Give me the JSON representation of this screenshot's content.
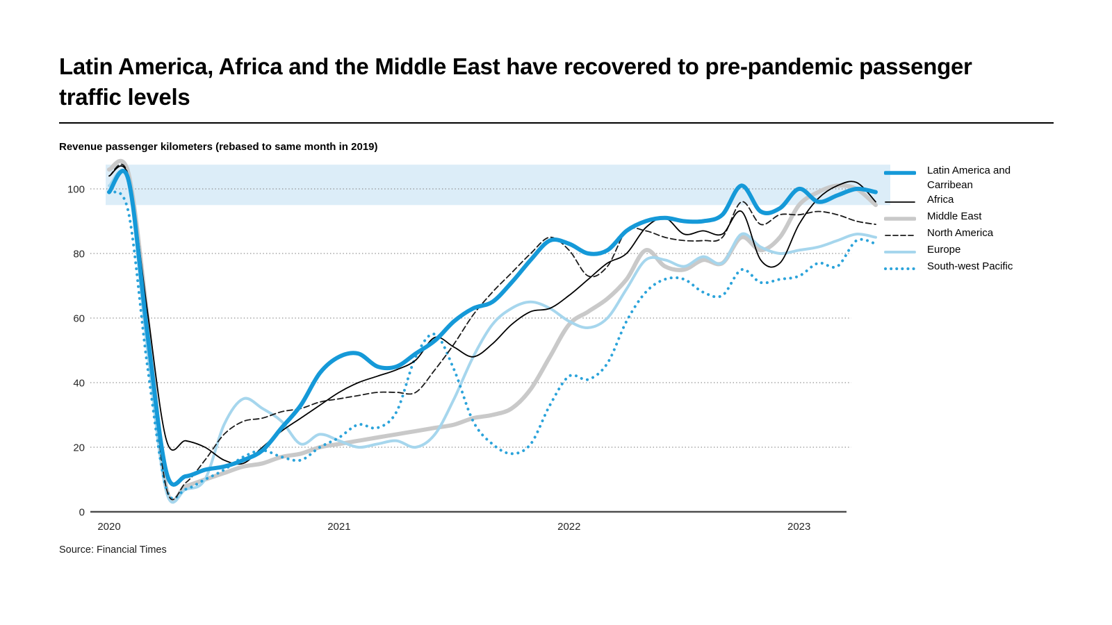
{
  "header": {
    "title": "Latin America, Africa and the Middle East have recovered to pre-pandemic passenger traffic levels"
  },
  "chart_data": {
    "type": "line",
    "title": "Latin America, Africa and the Middle East have recovered to pre-pandemic passenger traffic levels",
    "subtitle": "Revenue passenger kilometers (rebased to same month in 2019)",
    "source": "Source: Financial Times",
    "x_unit": "month",
    "x_range": [
      "2020-01",
      "2023-05"
    ],
    "x_ticks": [
      {
        "label": "2020",
        "month_index": 0
      },
      {
        "label": "2021",
        "month_index": 12
      },
      {
        "label": "2022",
        "month_index": 24
      },
      {
        "label": "2023",
        "month_index": 36
      }
    ],
    "y_ticks": [
      0,
      20,
      40,
      60,
      80,
      100
    ],
    "ylim": [
      0,
      107.5
    ],
    "grid": "horizontal dotted",
    "legend_position": "right",
    "highlight_band": {
      "from": 95,
      "to": 107.5,
      "color": "#dcedf8"
    },
    "series": [
      {
        "name": "Latin America and Carribean",
        "color": "#1599d8",
        "line": "solid",
        "width": 6,
        "values": [
          99,
          103,
          55,
          12,
          11,
          13,
          14,
          16,
          19,
          26,
          33,
          43,
          48,
          49,
          45,
          45,
          49,
          53,
          59,
          63,
          65,
          71,
          78,
          84,
          83,
          80,
          81,
          87,
          90,
          91,
          90,
          90,
          92,
          101,
          93,
          94,
          100,
          96,
          98,
          100,
          99
        ]
      },
      {
        "name": "Africa",
        "color": "#000000",
        "line": "solid",
        "width": 1.8,
        "values": [
          104,
          104,
          62,
          22,
          22,
          20,
          16,
          15,
          20,
          25,
          29,
          33,
          37,
          40,
          42,
          44,
          47,
          54,
          51,
          48,
          52,
          58,
          62,
          63,
          67,
          72,
          77,
          80,
          88,
          91,
          86,
          87,
          86,
          93,
          78,
          77,
          89,
          97,
          101,
          102,
          96
        ]
      },
      {
        "name": "Middle East",
        "color": "#c9c9c9",
        "line": "solid",
        "width": 6,
        "values": [
          106,
          105,
          60,
          7,
          8,
          10,
          12,
          14,
          15,
          17,
          18,
          20,
          21,
          22,
          23,
          24,
          25,
          26,
          27,
          29,
          30,
          32,
          38,
          48,
          58,
          62,
          66,
          72,
          81,
          76,
          75,
          78,
          77,
          85,
          81,
          85,
          95,
          99,
          101,
          100,
          95
        ]
      },
      {
        "name": "North America",
        "color": "#1a1a1a",
        "line": "dashed",
        "width": 1.8,
        "values": [
          104,
          104,
          55,
          7,
          9,
          16,
          24,
          28,
          29,
          31,
          32,
          34,
          35,
          36,
          37,
          37,
          37,
          44,
          52,
          61,
          68,
          74,
          80,
          85,
          81,
          73,
          76,
          87,
          87,
          85,
          84,
          84,
          85,
          96,
          89,
          92,
          92,
          93,
          92,
          90,
          89
        ]
      },
      {
        "name": "Europe",
        "color": "#a6d6ed",
        "line": "solid",
        "width": 4,
        "values": [
          101,
          102,
          50,
          6,
          7,
          10,
          27,
          35,
          32,
          28,
          21,
          24,
          22,
          20,
          21,
          22,
          20,
          24,
          35,
          48,
          58,
          63,
          65,
          63,
          59,
          57,
          60,
          69,
          78,
          78,
          76,
          79,
          77,
          86,
          82,
          80,
          81,
          82,
          84,
          86,
          85
        ]
      },
      {
        "name": "South-west Pacific",
        "color": "#2ba3da",
        "line": "dotted",
        "width": 4,
        "values": [
          99,
          93,
          45,
          7,
          7,
          10,
          13,
          17,
          19,
          17,
          16,
          20,
          23,
          27,
          26,
          31,
          48,
          55,
          44,
          28,
          21,
          18,
          21,
          33,
          42,
          41,
          46,
          59,
          68,
          72,
          72,
          68,
          67,
          75,
          71,
          72,
          73,
          77,
          76,
          84,
          83
        ]
      }
    ]
  },
  "source_note": "Source: Financial Times"
}
